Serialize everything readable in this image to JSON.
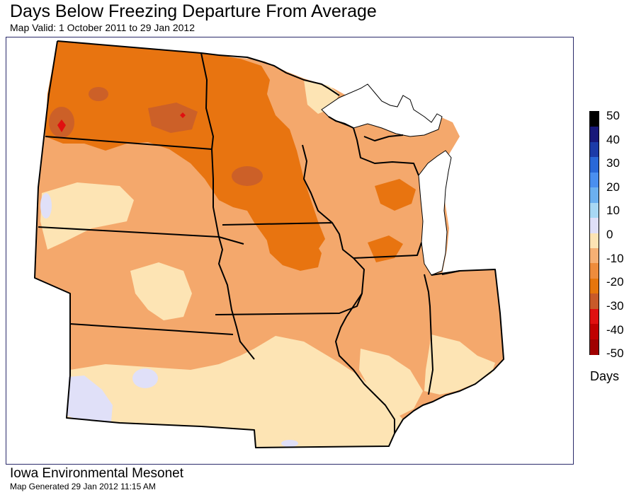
{
  "title": "Days Below Freezing Departure From Average",
  "subtitle": "Map Valid: 1 October 2011 to 29 Jan 2012",
  "legend": {
    "units": "Days",
    "ticks": [
      "50",
      "40",
      "30",
      "20",
      "10",
      "0",
      "-10",
      "-20",
      "-30",
      "-40",
      "-50"
    ],
    "colors": [
      "#000000",
      "#18187a",
      "#1c3ba8",
      "#2a68d8",
      "#4a8ff0",
      "#6cb0f0",
      "#a8d8f4",
      "#e0e0f8",
      "#fde4b4",
      "#f6b074",
      "#ee8c3c",
      "#e6760c",
      "#c85a2a",
      "#e01010",
      "#c00000",
      "#a00000"
    ]
  },
  "colors": {
    "light_tan": "#fde4b4",
    "light_orange": "#f4a86c",
    "orange": "#e87410",
    "dark_orange": "#cc6028",
    "red": "#e01010",
    "lavender": "#e0e0f8",
    "lake_blue": "#ffffff"
  },
  "footer": {
    "organization": "Iowa Environmental Mesonet",
    "generated": "Map Generated 29 Jan 2012 11:15 AM"
  }
}
